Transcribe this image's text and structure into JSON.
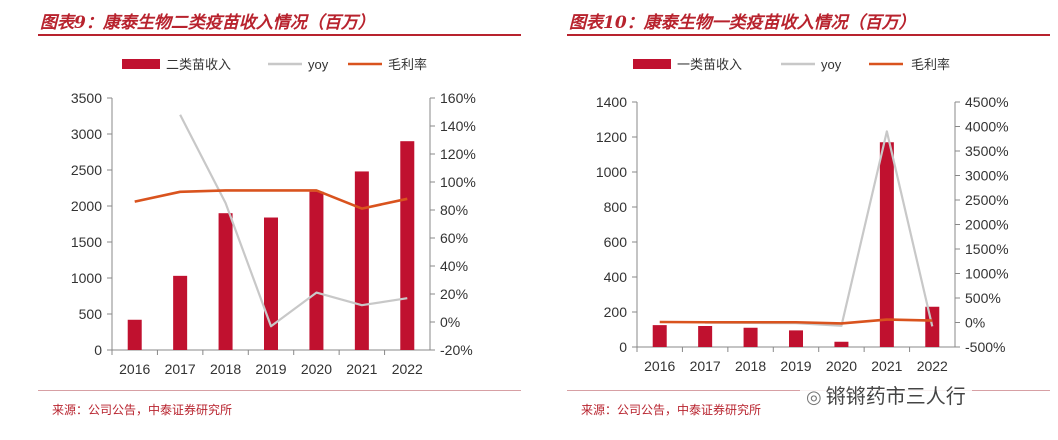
{
  "charts": [
    {
      "title": "图表9：康泰生物二类疫苗收入情况（百万）",
      "source": "来源：公司公告，中泰证券研究所"
    },
    {
      "title": "图表10：康泰生物一类疫苗收入情况（百万）",
      "source": "来源：公司公告，中泰证券研究所"
    }
  ],
  "watermark": "锵锵药市三人行",
  "colors": {
    "bar": "#c0112f",
    "yoy": "#c8c8c8",
    "margin": "#d9531e",
    "accent": "#b8232e"
  },
  "chart_data": [
    {
      "type": "bar",
      "categories": [
        "2016",
        "2017",
        "2018",
        "2019",
        "2020",
        "2021",
        "2022"
      ],
      "series": [
        {
          "name": "二类苗收入",
          "type": "bar",
          "axis": "left",
          "values": [
            420,
            1030,
            1900,
            1840,
            2200,
            2480,
            2900
          ]
        },
        {
          "name": "yoy",
          "type": "line",
          "axis": "right",
          "values": [
            null,
            148,
            85,
            -3,
            21,
            12,
            17
          ]
        },
        {
          "name": "毛利率",
          "type": "line",
          "axis": "right",
          "values": [
            86,
            93,
            94,
            94,
            94,
            81,
            88
          ]
        }
      ],
      "left_axis": {
        "min": 0,
        "max": 3500,
        "ticks": [
          "0",
          "500",
          "1000",
          "1500",
          "2000",
          "2500",
          "3000",
          "3500"
        ]
      },
      "right_axis": {
        "min": -20,
        "max": 160,
        "ticks": [
          "-20%",
          "0%",
          "20%",
          "40%",
          "60%",
          "80%",
          "100%",
          "120%",
          "140%",
          "160%"
        ]
      },
      "legend": "top",
      "grid": false
    },
    {
      "type": "bar",
      "categories": [
        "2016",
        "2017",
        "2018",
        "2019",
        "2020",
        "2021",
        "2022"
      ],
      "series": [
        {
          "name": "一类苗收入",
          "type": "bar",
          "axis": "left",
          "values": [
            125,
            120,
            110,
            95,
            30,
            1170,
            230
          ]
        },
        {
          "name": "yoy",
          "type": "line",
          "axis": "right",
          "values": [
            null,
            -4,
            -8,
            -14,
            -68,
            3900,
            -80
          ]
        },
        {
          "name": "毛利率",
          "type": "line",
          "axis": "right",
          "values": [
            10,
            5,
            5,
            5,
            -20,
            60,
            40
          ]
        }
      ],
      "left_axis": {
        "min": 0,
        "max": 1400,
        "ticks": [
          "0",
          "200",
          "400",
          "600",
          "800",
          "1000",
          "1200",
          "1400"
        ]
      },
      "right_axis": {
        "min": -500,
        "max": 4500,
        "ticks": [
          "-500%",
          "0%",
          "500%",
          "1000%",
          "1500%",
          "2000%",
          "2500%",
          "3000%",
          "3500%",
          "4000%",
          "4500%"
        ]
      },
      "legend": "top",
      "grid": false
    }
  ]
}
